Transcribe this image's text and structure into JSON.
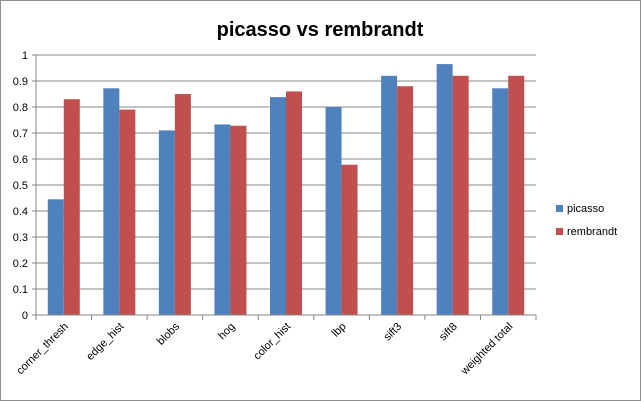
{
  "chart_data": {
    "type": "bar",
    "title": "picasso vs rembrandt",
    "xlabel": "",
    "ylabel": "",
    "ylim": [
      0,
      1
    ],
    "ytick_step": 0.1,
    "ytick_labels": [
      "0",
      "0.1",
      "0.2",
      "0.3",
      "0.4",
      "0.5",
      "0.6",
      "0.7",
      "0.8",
      "0.9",
      "1"
    ],
    "grid": "horizontal",
    "legend_position": "right",
    "categories": [
      "corner_thresh",
      "edge_hist",
      "blobs",
      "hog",
      "color_hist",
      "lbp",
      "sift3",
      "sift8",
      "weighted total"
    ],
    "series": [
      {
        "name": "picasso",
        "color": "#4f81bd",
        "values": [
          0.445,
          0.872,
          0.71,
          0.733,
          0.838,
          0.8,
          0.92,
          0.965,
          0.872
        ]
      },
      {
        "name": "rembrandt",
        "color": "#c0504d",
        "values": [
          0.83,
          0.79,
          0.85,
          0.728,
          0.86,
          0.578,
          0.88,
          0.92,
          0.92
        ]
      }
    ]
  }
}
